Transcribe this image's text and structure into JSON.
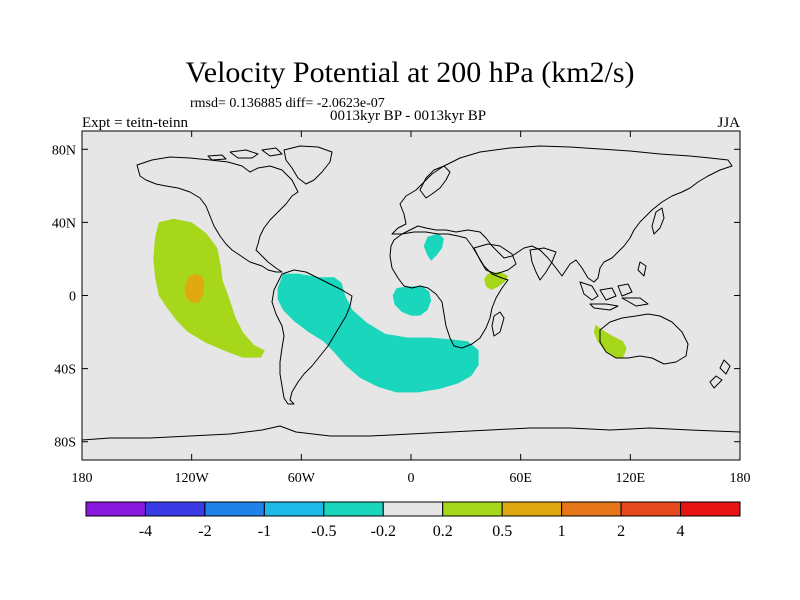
{
  "chart_data": {
    "type": "map",
    "title": "Velocity Potential at 200 hPa (km2/s)",
    "subtitle_stats": "rmsd= 0.136885 diff= -2.0623e-07",
    "subtitle_period": "0013kyr BP - 0013kyr BP",
    "left_label": "Expt = teitn-teinn",
    "right_label": "JJA",
    "xlim": [
      -180,
      180
    ],
    "ylim": [
      -90,
      90
    ],
    "x_ticks": [
      {
        "value": -180,
        "label": "180"
      },
      {
        "value": -120,
        "label": "120W"
      },
      {
        "value": -60,
        "label": "60W"
      },
      {
        "value": 0,
        "label": "0"
      },
      {
        "value": 60,
        "label": "60E"
      },
      {
        "value": 120,
        "label": "120E"
      },
      {
        "value": 180,
        "label": "180"
      }
    ],
    "y_ticks": [
      {
        "value": 80,
        "label": "80N"
      },
      {
        "value": 40,
        "label": "40N"
      },
      {
        "value": 0,
        "label": "0"
      },
      {
        "value": -40,
        "label": "40S"
      },
      {
        "value": -80,
        "label": "80S"
      }
    ],
    "anomaly_regions": [
      {
        "name": "east-pacific-positive",
        "level": "0.2 to 0.5",
        "color": "#a6d71b",
        "polygon": [
          [
            -138,
            40
          ],
          [
            -130,
            42
          ],
          [
            -120,
            40
          ],
          [
            -112,
            34
          ],
          [
            -106,
            26
          ],
          [
            -104,
            16
          ],
          [
            -103,
            8
          ],
          [
            -100,
            0
          ],
          [
            -96,
            -12
          ],
          [
            -92,
            -20
          ],
          [
            -86,
            -27
          ],
          [
            -80,
            -30
          ],
          [
            -82,
            -34
          ],
          [
            -92,
            -34
          ],
          [
            -100,
            -31
          ],
          [
            -112,
            -26
          ],
          [
            -122,
            -20
          ],
          [
            -128,
            -14
          ],
          [
            -134,
            -6
          ],
          [
            -138,
            0
          ],
          [
            -140,
            10
          ],
          [
            -141,
            20
          ],
          [
            -140,
            32
          ]
        ]
      },
      {
        "name": "east-pacific-core",
        "level": "0.5 to 1",
        "color": "#e0a910",
        "polygon": [
          [
            -122,
            10
          ],
          [
            -118,
            12
          ],
          [
            -114,
            10
          ],
          [
            -113,
            5
          ],
          [
            -114,
            0
          ],
          [
            -116,
            -4
          ],
          [
            -120,
            -4
          ],
          [
            -123,
            -1
          ],
          [
            -124,
            4
          ]
        ]
      },
      {
        "name": "south-atlantic-negative",
        "level": "-0.5 to -0.2",
        "color": "#19d6bd",
        "polygon": [
          [
            -70,
            12
          ],
          [
            -62,
            12
          ],
          [
            -50,
            10
          ],
          [
            -42,
            10
          ],
          [
            -38,
            7
          ],
          [
            -36,
            0
          ],
          [
            -32,
            -8
          ],
          [
            -24,
            -15
          ],
          [
            -14,
            -21
          ],
          [
            -2,
            -23
          ],
          [
            10,
            -23
          ],
          [
            22,
            -24
          ],
          [
            31,
            -25
          ],
          [
            37,
            -30
          ],
          [
            37,
            -38
          ],
          [
            33,
            -44
          ],
          [
            26,
            -48
          ],
          [
            16,
            -51
          ],
          [
            4,
            -53
          ],
          [
            -8,
            -53
          ],
          [
            -18,
            -50
          ],
          [
            -28,
            -45
          ],
          [
            -36,
            -38
          ],
          [
            -42,
            -31
          ],
          [
            -48,
            -25
          ],
          [
            -56,
            -20
          ],
          [
            -64,
            -14
          ],
          [
            -70,
            -8
          ],
          [
            -73,
            -2
          ],
          [
            -73,
            4
          ]
        ]
      },
      {
        "name": "gulf-of-guinea-negative",
        "level": "-0.5 to -0.2",
        "color": "#19d6bd",
        "polygon": [
          [
            -8,
            4
          ],
          [
            -2,
            5
          ],
          [
            6,
            5
          ],
          [
            10,
            2
          ],
          [
            11,
            -3
          ],
          [
            9,
            -8
          ],
          [
            5,
            -11
          ],
          [
            0,
            -11
          ],
          [
            -5,
            -9
          ],
          [
            -9,
            -5
          ],
          [
            -10,
            0
          ]
        ]
      },
      {
        "name": "north-africa-negative",
        "level": "-0.5 to -0.2",
        "color": "#19d6bd",
        "polygon": [
          [
            9,
            32
          ],
          [
            15,
            34
          ],
          [
            18,
            31
          ],
          [
            17,
            26
          ],
          [
            14,
            22
          ],
          [
            11,
            19
          ],
          [
            9,
            22
          ],
          [
            7,
            27
          ]
        ]
      },
      {
        "name": "horn-of-africa-positive",
        "level": "0.2 to 0.5",
        "color": "#a6d71b",
        "polygon": [
          [
            42,
            12
          ],
          [
            48,
            13
          ],
          [
            53,
            11
          ],
          [
            52,
            8
          ],
          [
            48,
            5
          ],
          [
            44,
            3
          ],
          [
            41,
            5
          ],
          [
            40,
            9
          ]
        ]
      },
      {
        "name": "west-australia-positive",
        "level": "0.2 to 0.5",
        "color": "#a6d71b",
        "polygon": [
          [
            101,
            -16
          ],
          [
            105,
            -19
          ],
          [
            110,
            -22
          ],
          [
            116,
            -25
          ],
          [
            118,
            -29
          ],
          [
            116,
            -34
          ],
          [
            111,
            -34
          ],
          [
            106,
            -30
          ],
          [
            102,
            -25
          ],
          [
            100,
            -20
          ]
        ]
      }
    ],
    "colorbar": {
      "colors": [
        "#8a1ae0",
        "#3a3ae6",
        "#1e82e8",
        "#1eb9e6",
        "#19d6bd",
        "#e6e6e6",
        "#a6d71b",
        "#e0a910",
        "#e6761a",
        "#e6481e",
        "#e61414"
      ],
      "labels": [
        "-4",
        "-2",
        "-1",
        "-0.5",
        "-0.2",
        "0.2",
        "0.5",
        "1",
        "2",
        "4"
      ]
    },
    "background_color": "#e6e6e6"
  }
}
